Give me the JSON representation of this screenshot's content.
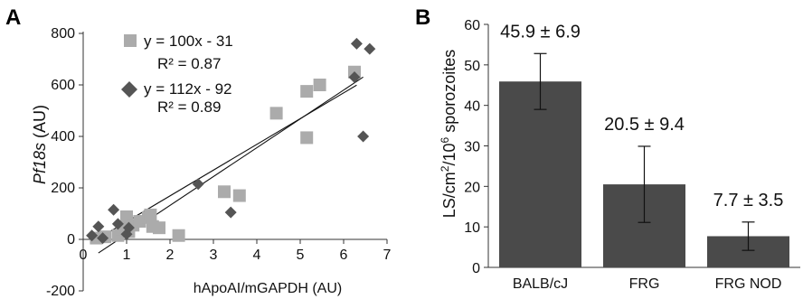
{
  "chart_data": [
    {
      "panel_label": "A",
      "type": "scatter",
      "xlabel": "hApoAI/mGAPDH (AU)",
      "ylabel": "Pf18s (AU)",
      "ylabel_italic": "Pf18s",
      "ylabel_rest": " (AU)",
      "xlim": [
        0,
        7
      ],
      "ylim": [
        -200,
        800
      ],
      "x_ticks": [
        "0",
        "1",
        "2",
        "3",
        "4",
        "5",
        "6",
        "7"
      ],
      "y_ticks": [
        "-200",
        "0",
        "200",
        "400",
        "600",
        "800"
      ],
      "series": [
        {
          "marker": "square",
          "color": "#ababab",
          "equation": "y = 100x - 31",
          "r2": "R² = 0.87",
          "fit": {
            "slope": 100,
            "intercept": -31,
            "x_range": [
              0.2,
              6.3
            ]
          },
          "points": [
            {
              "x": 0.3,
              "y": 5
            },
            {
              "x": 0.5,
              "y": 10
            },
            {
              "x": 0.8,
              "y": 15
            },
            {
              "x": 0.9,
              "y": 40
            },
            {
              "x": 1.0,
              "y": 88
            },
            {
              "x": 1.05,
              "y": 30
            },
            {
              "x": 1.15,
              "y": 55
            },
            {
              "x": 1.3,
              "y": 70
            },
            {
              "x": 1.5,
              "y": 85
            },
            {
              "x": 1.55,
              "y": 95
            },
            {
              "x": 1.6,
              "y": 50
            },
            {
              "x": 1.75,
              "y": 45
            },
            {
              "x": 2.2,
              "y": 15
            },
            {
              "x": 3.25,
              "y": 185
            },
            {
              "x": 3.6,
              "y": 170
            },
            {
              "x": 4.45,
              "y": 490
            },
            {
              "x": 5.15,
              "y": 575
            },
            {
              "x": 5.15,
              "y": 395
            },
            {
              "x": 5.45,
              "y": 600
            },
            {
              "x": 6.25,
              "y": 650
            }
          ]
        },
        {
          "marker": "diamond",
          "color": "#555555",
          "equation": "y = 112x - 92",
          "r2": "R² = 0.89",
          "fit": {
            "slope": 112,
            "intercept": -92,
            "x_range": [
              0.35,
              6.45
            ]
          },
          "points": [
            {
              "x": 0.2,
              "y": 15
            },
            {
              "x": 0.35,
              "y": 50
            },
            {
              "x": 0.45,
              "y": 5
            },
            {
              "x": 0.7,
              "y": 115
            },
            {
              "x": 0.8,
              "y": 60
            },
            {
              "x": 1.0,
              "y": 20
            },
            {
              "x": 1.05,
              "y": 45
            },
            {
              "x": 2.65,
              "y": 215
            },
            {
              "x": 3.4,
              "y": 105
            },
            {
              "x": 6.25,
              "y": 630
            },
            {
              "x": 6.3,
              "y": 760
            },
            {
              "x": 6.45,
              "y": 400
            },
            {
              "x": 6.6,
              "y": 740
            }
          ]
        }
      ]
    },
    {
      "panel_label": "B",
      "type": "bar",
      "ylabel_prefix": "LS/cm",
      "ylabel_sup1": "2",
      "ylabel_mid": "/10",
      "ylabel_sup2": "6",
      "ylabel_suffix": " sporozoites",
      "ylim": [
        0,
        60
      ],
      "y_ticks": [
        "0",
        "10",
        "20",
        "30",
        "40",
        "50",
        "60"
      ],
      "categories": [
        "BALB/cJ",
        "FRG",
        "FRG NOD"
      ],
      "values": [
        45.9,
        20.5,
        7.7
      ],
      "errors": [
        6.9,
        9.4,
        3.5
      ],
      "value_labels": [
        "45.9 ± 6.9",
        "20.5 ± 9.4",
        "7.7 ± 3.5"
      ],
      "bar_color": "#4a4a4a"
    }
  ]
}
